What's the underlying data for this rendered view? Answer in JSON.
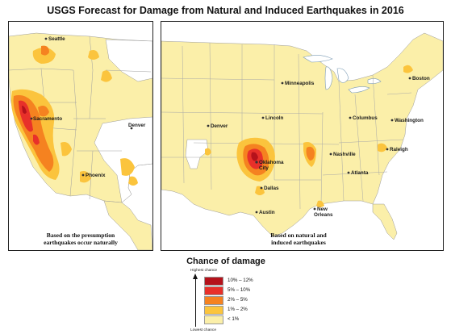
{
  "title": "USGS Forecast for Damage from Natural and Induced Earthquakes in 2016",
  "left_panel": {
    "caption_line1": "Based on the presumption",
    "caption_line2": "earthquakes occur naturally",
    "cities": [
      "Seattle",
      "Sacramento",
      "Phoenix",
      "Denver"
    ]
  },
  "right_panel": {
    "caption_line1": "Based on natural and",
    "caption_line2": "induced earthquakes",
    "cities": [
      "Minneapolis",
      "Boston",
      "Lincoln",
      "Columbus",
      "Washington",
      "Denver",
      "Nashville",
      "Raleigh",
      "Oklahoma",
      "City",
      "Atlanta",
      "Dallas",
      "Austin",
      "New",
      "Orleans"
    ]
  },
  "legend": {
    "title": "Chance of damage",
    "highest_label": "Highest chance",
    "lowest_label": "Lowest chance",
    "items": [
      {
        "label": "10% – 12%",
        "color": "#b5121b"
      },
      {
        "label": "5% – 10%",
        "color": "#e8302a"
      },
      {
        "label": "2% – 5%",
        "color": "#f58220"
      },
      {
        "label": "1% – 2%",
        "color": "#fbc43d"
      },
      {
        "label": "< 1%",
        "color": "#fbefa9"
      }
    ]
  },
  "colors": {
    "lt1": "#fbefa9",
    "p1to2": "#fbc43d",
    "p2to5": "#f58220",
    "p5to10": "#e8302a",
    "p10to12": "#b5121b",
    "no_data": "#ffffff",
    "boundary": "#9a9a9a",
    "water": "#ffffff"
  }
}
